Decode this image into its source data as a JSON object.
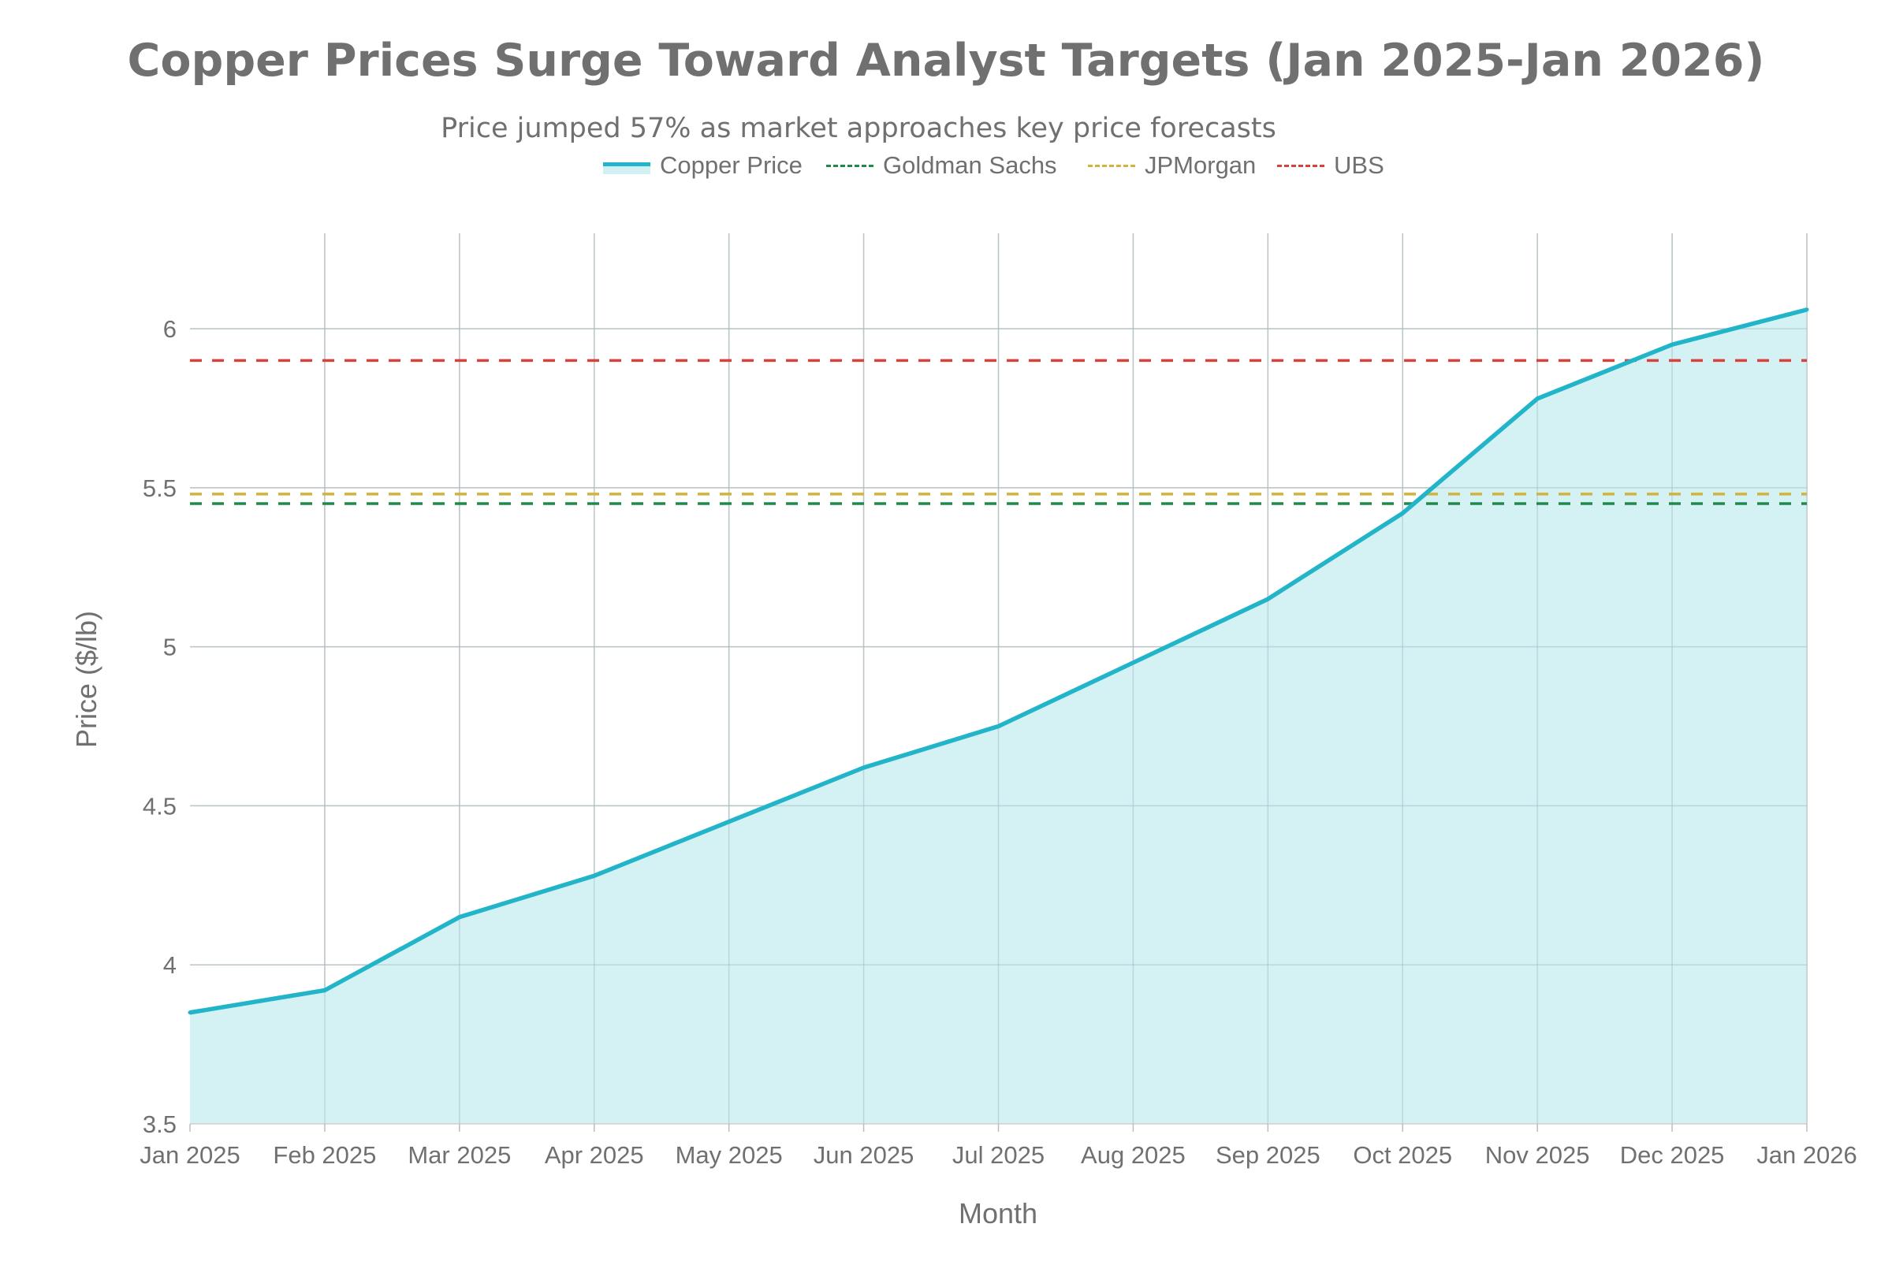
{
  "chart_data": {
    "type": "area",
    "title": "Copper Prices Surge Toward Analyst Targets (Jan 2025-Jan 2026)",
    "subtitle": "Price jumped 57% as market approaches key price forecasts",
    "xlabel": "Month",
    "ylabel": "Price ($/lb)",
    "ylim": [
      3.5,
      6.3
    ],
    "yticks": [
      "3.5",
      "4",
      "4.5",
      "5",
      "5.5",
      "6"
    ],
    "ytick_values": [
      3.5,
      4,
      4.5,
      5,
      5.5,
      6
    ],
    "categories": [
      "Jan 2025",
      "Feb 2025",
      "Mar 2025",
      "Apr 2025",
      "May 2025",
      "Jun 2025",
      "Jul 2025",
      "Aug 2025",
      "Sep 2025",
      "Oct 2025",
      "Nov 2025",
      "Dec 2025",
      "Jan 2026"
    ],
    "grid": true,
    "legend_position": "top-center",
    "series": [
      {
        "name": "Copper Price",
        "style": "solid-fill",
        "color": "#22b5c9",
        "fill": "#d2f0f3",
        "values": [
          3.85,
          3.92,
          4.15,
          4.28,
          4.45,
          4.62,
          4.75,
          4.95,
          5.15,
          5.42,
          5.78,
          5.95,
          6.06
        ]
      },
      {
        "name": "Goldman Sachs",
        "style": "dashed",
        "color": "#1e8a4c",
        "value": 5.45
      },
      {
        "name": "JPMorgan",
        "style": "dashed",
        "color": "#d4b33a",
        "value": 5.48
      },
      {
        "name": "UBS",
        "style": "dashed",
        "color": "#d9413a",
        "value": 5.9
      }
    ]
  }
}
